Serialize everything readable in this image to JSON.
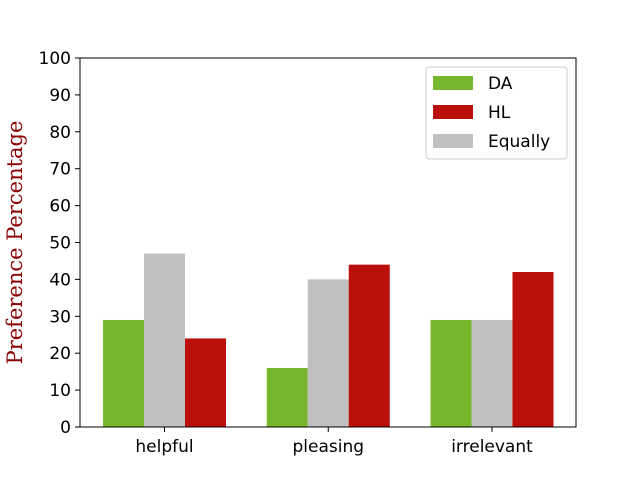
{
  "chart_data": {
    "type": "bar",
    "title": "",
    "xlabel": "",
    "ylabel": "Preference Percentage",
    "ylim": [
      0,
      100
    ],
    "yticks": [
      0,
      10,
      20,
      30,
      40,
      50,
      60,
      70,
      80,
      90,
      100
    ],
    "categories": [
      "helpful",
      "pleasing",
      "irrelevant"
    ],
    "series": [
      {
        "name": "DA",
        "values": [
          29,
          16,
          29
        ],
        "color": "#77b72e"
      },
      {
        "name": "Equally",
        "values": [
          47,
          40,
          29
        ],
        "color": "#bfbfbf"
      },
      {
        "name": "HL",
        "values": [
          24,
          44,
          42
        ],
        "color": "#bb0f0b"
      }
    ],
    "legend": {
      "placement": "top-right",
      "order": [
        "DA",
        "HL",
        "Equally"
      ]
    },
    "grid": false,
    "ylabel_color": "#8b0000"
  }
}
